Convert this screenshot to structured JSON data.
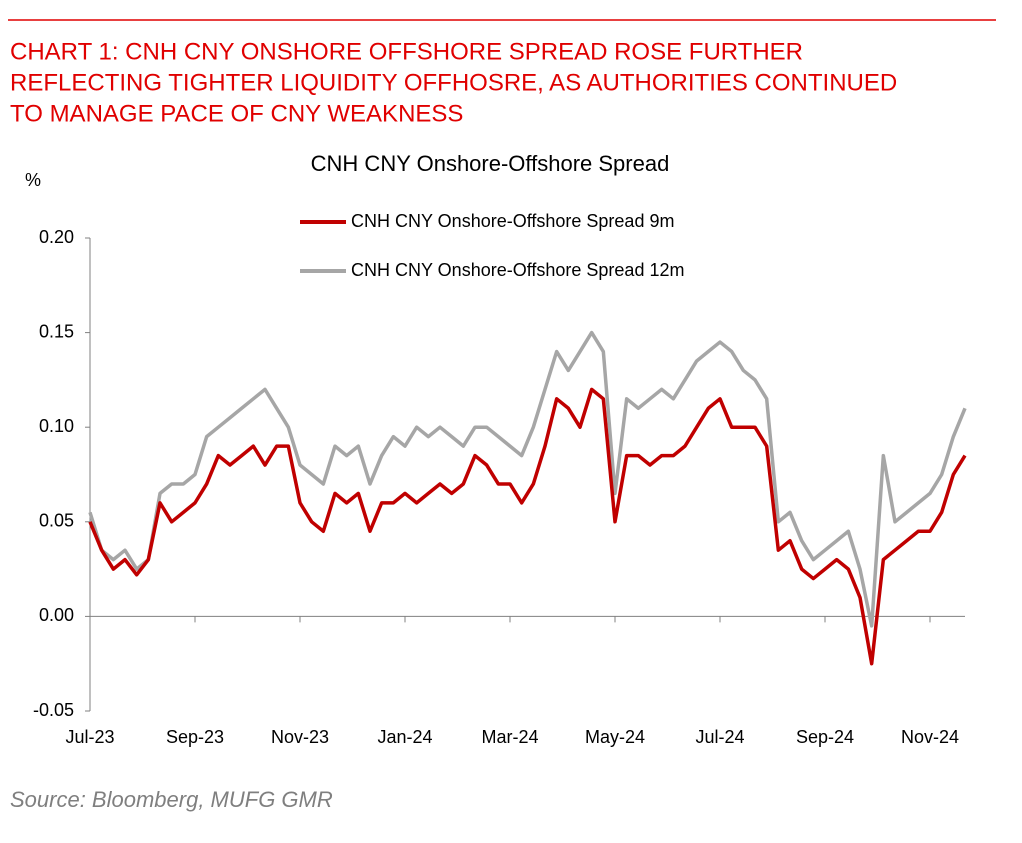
{
  "header": {
    "title_lines": [
      "CHART 1: CNH CNY ONSHORE OFFSHORE SPREAD ROSE FURTHER",
      "REFLECTING TIGHTER LIQUIDITY OFFHOSRE, AS AUTHORITIES CONTINUED",
      "TO MANAGE PACE OF CNY WEAKNESS"
    ]
  },
  "chart_data": {
    "type": "line",
    "title": "CNH CNY Onshore-Offshore Spread",
    "y_label": "%",
    "categories": [
      "Jul-23",
      null,
      null,
      null,
      null,
      null,
      null,
      null,
      null,
      "Sep-23",
      null,
      null,
      null,
      null,
      null,
      null,
      null,
      null,
      "Nov-23",
      null,
      null,
      null,
      null,
      null,
      null,
      null,
      null,
      "Jan-24",
      null,
      null,
      null,
      null,
      null,
      null,
      null,
      null,
      "Mar-24",
      null,
      null,
      null,
      null,
      null,
      null,
      null,
      null,
      "May-24",
      null,
      null,
      null,
      null,
      null,
      null,
      null,
      null,
      "Jul-24",
      null,
      null,
      null,
      null,
      null,
      null,
      null,
      null,
      "Sep-24",
      null,
      null,
      null,
      null,
      null,
      null,
      null,
      null,
      "Nov-24",
      null,
      null,
      null
    ],
    "series": [
      {
        "name": "CNH CNY Onshore-Offshore Spread 9m",
        "color": "#c00000",
        "values": [
          0.05,
          0.035,
          0.025,
          0.03,
          0.022,
          0.03,
          0.06,
          0.05,
          0.055,
          0.06,
          0.07,
          0.085,
          0.08,
          0.085,
          0.09,
          0.08,
          0.09,
          0.09,
          0.06,
          0.05,
          0.045,
          0.065,
          0.06,
          0.065,
          0.045,
          0.06,
          0.06,
          0.065,
          0.06,
          0.065,
          0.07,
          0.065,
          0.07,
          0.085,
          0.08,
          0.07,
          0.07,
          0.06,
          0.07,
          0.09,
          0.115,
          0.11,
          0.1,
          0.12,
          0.115,
          0.05,
          0.085,
          0.085,
          0.08,
          0.085,
          0.085,
          0.09,
          0.1,
          0.11,
          0.115,
          0.1,
          0.1,
          0.1,
          0.09,
          0.035,
          0.04,
          0.025,
          0.02,
          0.025,
          0.03,
          0.025,
          0.01,
          -0.025,
          0.03,
          0.035,
          0.04,
          0.045,
          0.045,
          0.055,
          0.075,
          0.085
        ]
      },
      {
        "name": "CNH CNY Onshore-Offshore Spread 12m",
        "color": "#a6a6a6",
        "values": [
          0.055,
          0.035,
          0.03,
          0.035,
          0.025,
          0.03,
          0.065,
          0.07,
          0.07,
          0.075,
          0.095,
          0.1,
          0.105,
          0.11,
          0.115,
          0.12,
          0.11,
          0.1,
          0.08,
          0.075,
          0.07,
          0.09,
          0.085,
          0.09,
          0.07,
          0.085,
          0.095,
          0.09,
          0.1,
          0.095,
          0.1,
          0.095,
          0.09,
          0.1,
          0.1,
          0.095,
          0.09,
          0.085,
          0.1,
          0.12,
          0.14,
          0.13,
          0.14,
          0.15,
          0.14,
          0.065,
          0.115,
          0.11,
          0.115,
          0.12,
          0.115,
          0.125,
          0.135,
          0.14,
          0.145,
          0.14,
          0.13,
          0.125,
          0.115,
          0.05,
          0.055,
          0.04,
          0.03,
          0.035,
          0.04,
          0.045,
          0.025,
          -0.005,
          0.085,
          0.05,
          0.055,
          0.06,
          0.065,
          0.075,
          0.095,
          0.11
        ]
      }
    ],
    "ylim": [
      -0.05,
      0.2
    ],
    "yticks": [
      -0.05,
      {
        "value": 0,
        "label": "0.00"
      },
      0.05,
      {
        "value": 0.1,
        "label": "0.10"
      },
      0.15,
      {
        "value": 0.2,
        "label": "0.20"
      }
    ],
    "source": "Source: Bloomberg, MUFG GMR"
  }
}
